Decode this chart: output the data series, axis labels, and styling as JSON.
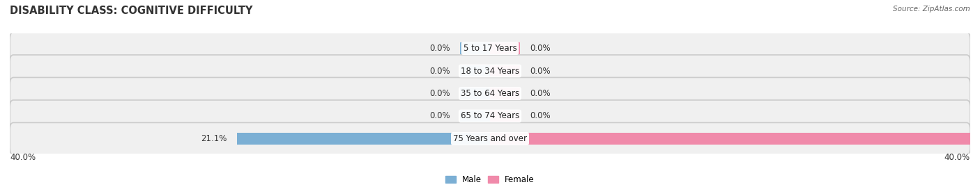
{
  "title": "DISABILITY CLASS: COGNITIVE DIFFICULTY",
  "source": "Source: ZipAtlas.com",
  "categories": [
    "5 to 17 Years",
    "18 to 34 Years",
    "35 to 64 Years",
    "65 to 74 Years",
    "75 Years and over"
  ],
  "male_values": [
    0.0,
    0.0,
    0.0,
    0.0,
    21.1
  ],
  "female_values": [
    0.0,
    0.0,
    0.0,
    0.0,
    40.0
  ],
  "male_color": "#7bafd4",
  "female_color": "#f08aaa",
  "row_bg_color": "#e8e8e8",
  "row_bg_inner": "#f2f2f2",
  "xlim": 40.0,
  "axis_label_left": "40.0%",
  "axis_label_right": "40.0%",
  "title_fontsize": 10.5,
  "label_fontsize": 8.5,
  "value_fontsize": 8.5,
  "bar_height": 0.52,
  "stub_value": 2.5,
  "figsize": [
    14.06,
    2.69
  ],
  "dpi": 100
}
